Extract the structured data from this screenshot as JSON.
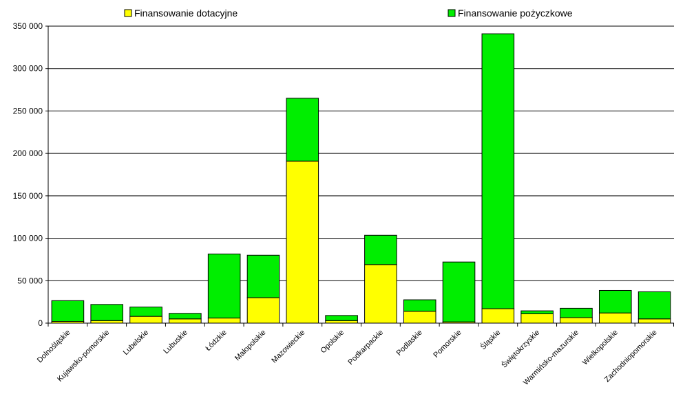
{
  "chart_data": {
    "type": "bar",
    "stacked": true,
    "categories": [
      "Dolnośląskie",
      "Kujawsko-pomorskie",
      "Lubelskie",
      "Lubuskie",
      "Łódzkie",
      "Małopolskie",
      "Mazowieckie",
      "Opolskie",
      "Podkarpackie",
      "Podlaskie",
      "Pomorskie",
      "Śląskie",
      "Świętokrzyskie",
      "Warmińsko-mazurskie",
      "Wielkopolskie",
      "Zachodniopomorskie"
    ],
    "series": [
      {
        "name": "Finansowanie dotacyjne",
        "color": "#FFFF00",
        "values": [
          2000,
          3000,
          8000,
          5000,
          6000,
          30000,
          191000,
          3000,
          69000,
          14000,
          1500,
          17000,
          11000,
          6500,
          12000,
          5000
        ]
      },
      {
        "name": "Finansowanie pożyczkowe",
        "color": "#00EE00",
        "values": [
          24500,
          19000,
          11000,
          6500,
          75500,
          50000,
          74000,
          6000,
          34500,
          13500,
          70500,
          324000,
          3500,
          11000,
          26500,
          32000
        ]
      }
    ],
    "yticks": [
      "0",
      "50 000",
      "100 000",
      "150 000",
      "200 000",
      "250 000",
      "300 000",
      "350 000"
    ],
    "ylim": [
      0,
      350000
    ],
    "grid": true,
    "legend_position": "top"
  }
}
